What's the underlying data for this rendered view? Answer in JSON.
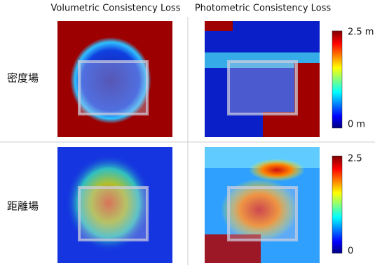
{
  "columns": [
    "Volumetric Consistency Loss",
    "Photometric Consistency Loss"
  ],
  "rows": [
    "密度場",
    "距離場"
  ],
  "colorbars": [
    {
      "max": "2.5 m",
      "min": "0 m"
    },
    {
      "max": "2.5",
      "min": "0"
    }
  ]
}
